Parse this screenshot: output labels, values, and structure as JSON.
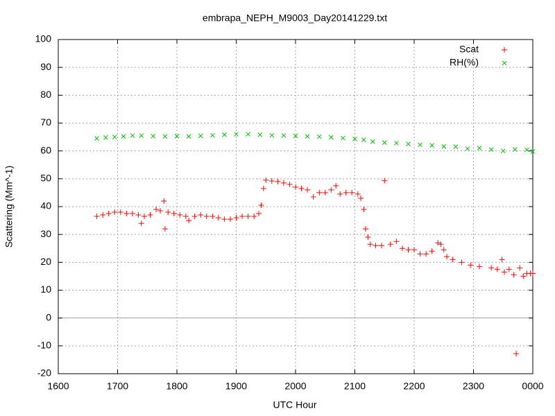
{
  "chart_data": {
    "type": "scatter",
    "title": "embrapa_NEPH_M9003_Day20141229.txt",
    "xlabel": "UTC Hour",
    "ylabel": "Scattering (Mm^-1)",
    "xlim": [
      1600,
      2400
    ],
    "xticks": [
      1600,
      1700,
      1800,
      1900,
      2000,
      2100,
      2200,
      2300,
      {
        "value": 2400,
        "label": "0000"
      }
    ],
    "ylim": [
      -20,
      100
    ],
    "yticks": [
      -20,
      -10,
      0,
      10,
      20,
      30,
      40,
      50,
      60,
      70,
      80,
      90,
      100
    ],
    "grid": true,
    "legend": "top-right",
    "series": [
      {
        "name": "Scat",
        "color": "#ff0000",
        "marker": "+",
        "x": [
          1665,
          1675,
          1685,
          1695,
          1705,
          1715,
          1725,
          1735,
          1740,
          1745,
          1755,
          1765,
          1772,
          1778,
          1780,
          1785,
          1795,
          1805,
          1815,
          1820,
          1830,
          1840,
          1850,
          1860,
          1870,
          1880,
          1890,
          1900,
          1910,
          1920,
          1930,
          1938,
          1942,
          1946,
          1950,
          1960,
          1970,
          1980,
          1990,
          2000,
          2010,
          2020,
          2030,
          2040,
          2050,
          2060,
          2068,
          2075,
          2085,
          2095,
          2105,
          2110,
          2115,
          2118,
          2122,
          2126,
          2135,
          2145,
          2150,
          2160,
          2170,
          2180,
          2190,
          2200,
          2210,
          2220,
          2230,
          2240,
          2245,
          2250,
          2255,
          2265,
          2280,
          2295,
          2310,
          2330,
          2340,
          2348,
          2352,
          2360,
          2368,
          2372,
          2378,
          2384,
          2390,
          2396,
          2400
        ],
        "values": [
          36.5,
          37,
          37.5,
          38,
          38,
          37.5,
          37.5,
          37,
          34,
          36.5,
          37,
          39,
          38.5,
          42,
          32,
          38,
          37.5,
          37,
          36.5,
          35,
          36.5,
          37,
          36.5,
          36.5,
          36,
          35.5,
          35.5,
          36,
          36.5,
          36.5,
          36.5,
          37.5,
          40.5,
          46.5,
          49.5,
          49.2,
          49,
          48.5,
          48,
          47,
          46.5,
          46,
          43.5,
          45,
          45,
          46,
          47.5,
          44.5,
          45,
          45,
          44.5,
          43,
          39,
          32,
          29,
          26.5,
          26,
          26,
          49.3,
          26.5,
          27.5,
          25,
          24.5,
          24.5,
          23,
          23,
          24,
          27,
          26.5,
          24.5,
          22,
          21,
          20,
          19,
          18.5,
          18,
          17.5,
          21,
          16.5,
          17.5,
          15.5,
          -12.8,
          18,
          15,
          16,
          16,
          16
        ]
      },
      {
        "name": "RH(%)",
        "color": "#00c000",
        "marker": "x",
        "x": [
          1665,
          1680,
          1695,
          1710,
          1725,
          1740,
          1760,
          1780,
          1800,
          1820,
          1840,
          1860,
          1880,
          1900,
          1920,
          1940,
          1960,
          1980,
          2000,
          2020,
          2040,
          2060,
          2080,
          2100,
          2115,
          2130,
          2150,
          2170,
          2190,
          2210,
          2230,
          2250,
          2270,
          2290,
          2310,
          2330,
          2350,
          2370,
          2390,
          2400
        ],
        "values": [
          64.5,
          64.8,
          65,
          65.2,
          65.5,
          65.5,
          65.3,
          65.2,
          65.3,
          65.2,
          65.4,
          65.6,
          65.8,
          66,
          66,
          65.8,
          65.6,
          65.5,
          65.4,
          65.2,
          65.1,
          64.9,
          64.6,
          64.3,
          64,
          63.3,
          63,
          62.8,
          62.5,
          62.2,
          62,
          61.6,
          61.5,
          60.8,
          61,
          60.5,
          60,
          60.5,
          60.4,
          59.8
        ]
      }
    ]
  }
}
